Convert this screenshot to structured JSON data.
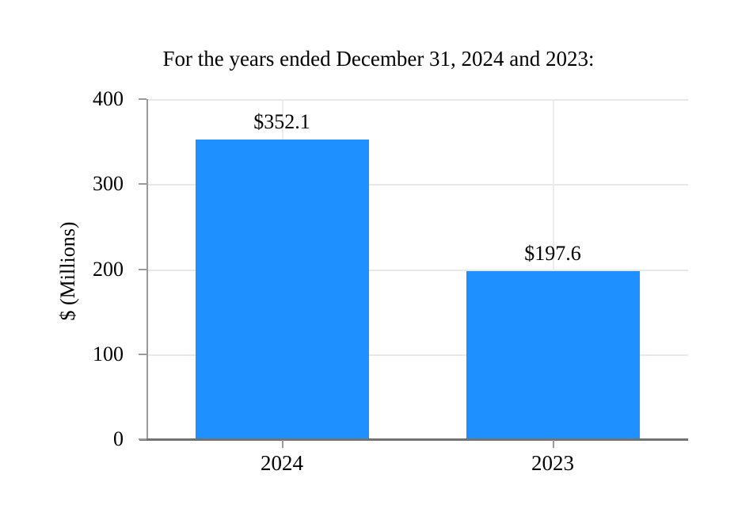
{
  "chart_data": {
    "type": "bar",
    "title": "For the years ended December 31, 2024 and 2023:",
    "categories": [
      "2024",
      "2023"
    ],
    "values": [
      352.1,
      197.6
    ],
    "bar_labels": [
      "$352.1",
      "$197.6"
    ],
    "xlabel": "",
    "ylabel": "$ (Millions)",
    "ylim": [
      0,
      400
    ],
    "yticks": [
      0,
      100,
      200,
      300,
      400
    ],
    "ytick_labels": [
      "0",
      "100",
      "200",
      "300",
      "400"
    ],
    "grid": true,
    "legend_position": "none",
    "bar_color": "#1E90FF",
    "gridline_color": "#e8e8e8",
    "spine_color": "#9a9a9a",
    "baseline_color": "#737373",
    "text_color": "#000000"
  }
}
